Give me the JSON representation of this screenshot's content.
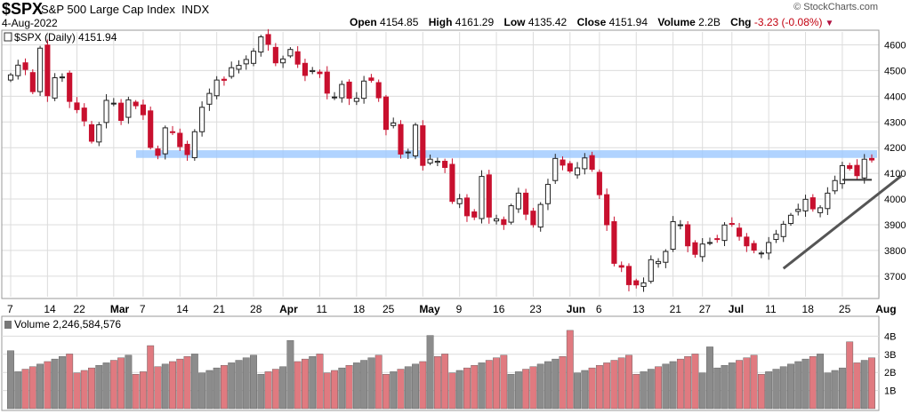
{
  "header": {
    "symbol": "$SPX",
    "name": "S&P 500 Large Cap Index",
    "exchange": "INDX",
    "date": "4-Aug-2022",
    "copyright": "© StockCharts.com",
    "open_label": "Open",
    "open": "4154.85",
    "high_label": "High",
    "high": "4161.29",
    "low_label": "Low",
    "low": "4135.42",
    "close_label": "Close",
    "close": "4151.94",
    "volume_label": "Volume",
    "volume": "2.2B",
    "chg_label": "Chg",
    "chg": "-3.23 (-0.08%)"
  },
  "colors": {
    "up": "#ffffff",
    "down": "#c8102e",
    "outline": "#222222",
    "band": "#9cc8ff",
    "vol_up": "#8c8c8c",
    "vol_down": "#e07a80",
    "grid": "#dcdcdc"
  },
  "chart_data": [
    {
      "type": "candlestick",
      "legend": "$SPX (Daily) 4151.94",
      "y_ticks": [
        3700,
        3800,
        3900,
        4000,
        4100,
        4200,
        4300,
        4400,
        4500,
        4600
      ],
      "ylim": [
        3620,
        4650
      ],
      "x_ticks": [
        {
          "label": "7",
          "index": 0
        },
        {
          "label": "14",
          "index": 5
        },
        {
          "label": "22",
          "index": 9
        },
        {
          "label": "Mar",
          "index": 14
        },
        {
          "label": "7",
          "index": 18
        },
        {
          "label": "14",
          "index": 23
        },
        {
          "label": "21",
          "index": 28
        },
        {
          "label": "28",
          "index": 33
        },
        {
          "label": "Apr",
          "index": 37
        },
        {
          "label": "11",
          "index": 42
        },
        {
          "label": "18",
          "index": 47
        },
        {
          "label": "25",
          "index": 51
        },
        {
          "label": "May",
          "index": 56
        },
        {
          "label": "9",
          "index": 61
        },
        {
          "label": "16",
          "index": 66
        },
        {
          "label": "23",
          "index": 71
        },
        {
          "label": "Jun",
          "index": 76
        },
        {
          "label": "6",
          "index": 80
        },
        {
          "label": "13",
          "index": 85
        },
        {
          "label": "21",
          "index": 90
        },
        {
          "label": "27",
          "index": 94
        },
        {
          "label": "Jul",
          "index": 98
        },
        {
          "label": "11",
          "index": 103
        },
        {
          "label": "18",
          "index": 108
        },
        {
          "label": "25",
          "index": 113
        },
        {
          "label": "Aug",
          "index": 118
        }
      ],
      "resistance_band": [
        4160,
        4190
      ],
      "trendline": [
        {
          "index": 105,
          "value": 3730
        },
        {
          "index": 121,
          "value": 4090
        }
      ],
      "close_series": [
        4483,
        4521,
        4504,
        4418,
        4587,
        4402,
        4472,
        4475,
        4380,
        4348,
        4304,
        4225,
        4289,
        4384,
        4373,
        4306,
        4386,
        4363,
        4328,
        4201,
        4170,
        4277,
        4259,
        4204,
        4173,
        4262,
        4357,
        4411,
        4463,
        4462,
        4511,
        4520,
        4543,
        4575,
        4631,
        4602,
        4530,
        4545,
        4582,
        4525,
        4481,
        4500,
        4488,
        4412,
        4397,
        4446,
        4392,
        4392,
        4459,
        4462,
        4394,
        4271,
        4296,
        4175,
        4183,
        4288,
        4131,
        4155,
        4147,
        4123,
        3991,
        4001,
        3935,
        3930,
        4088,
        3930,
        3923,
        3901,
        3974,
        4023,
        3941,
        3900,
        3979,
        4057,
        4158,
        4132,
        4109,
        4121,
        4160,
        4116,
        4017,
        3900,
        3750,
        3735,
        3667,
        3666,
        3674,
        3764,
        3757,
        3796,
        3912,
        3900,
        3818,
        3785,
        3825,
        3831,
        3845,
        3899,
        3902,
        3855,
        3818,
        3801,
        3790,
        3831,
        3863,
        3902,
        3937,
        3960,
        3999,
        3962,
        3966,
        4023,
        4072,
        4130,
        4119,
        4091,
        4155,
        4152
      ],
      "volume_ylim": [
        0,
        5000000000
      ],
      "volume_ticks": [
        "1B",
        "2B",
        "3B",
        "4B"
      ],
      "volume_tick_values": [
        1000000000,
        2000000000,
        3000000000,
        4000000000
      ]
    },
    {
      "type": "bar",
      "legend": "Volume 2,246,584,576"
    }
  ]
}
